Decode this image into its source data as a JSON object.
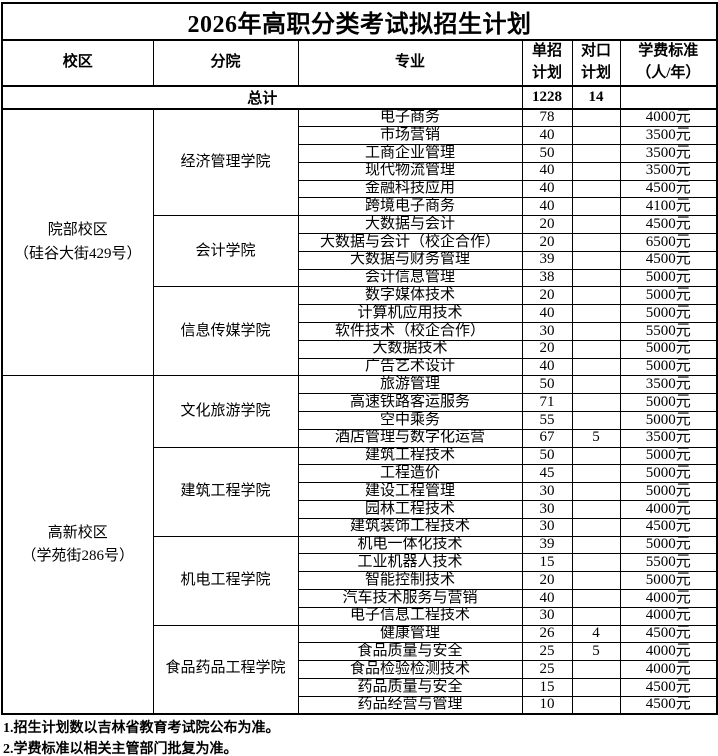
{
  "title": "2026年高职分类考试拟招生计划",
  "header": {
    "campus": "校区",
    "college": "分院",
    "major": "专业",
    "single_plan": "单招\n计划",
    "counterpart_plan": "对口\n计划",
    "tuition": "学费标准\n（人/年）"
  },
  "total": {
    "label": "总计",
    "single": "1228",
    "counterpart": "14",
    "tuition": ""
  },
  "campuses": [
    {
      "name": "院部校区\n（硅谷大街429号）",
      "colleges": [
        {
          "name": "经济管理学院",
          "majors": [
            {
              "major": "电子商务",
              "single": "78",
              "counterpart": "",
              "tuition": "4000元"
            },
            {
              "major": "市场营销",
              "single": "40",
              "counterpart": "",
              "tuition": "3500元"
            },
            {
              "major": "工商企业管理",
              "single": "50",
              "counterpart": "",
              "tuition": "3500元"
            },
            {
              "major": "现代物流管理",
              "single": "40",
              "counterpart": "",
              "tuition": "3500元"
            },
            {
              "major": "金融科技应用",
              "single": "40",
              "counterpart": "",
              "tuition": "4500元"
            },
            {
              "major": "跨境电子商务",
              "single": "40",
              "counterpart": "",
              "tuition": "4100元"
            }
          ]
        },
        {
          "name": "会计学院",
          "majors": [
            {
              "major": "大数据与会计",
              "single": "20",
              "counterpart": "",
              "tuition": "4500元"
            },
            {
              "major": "大数据与会计（校企合作）",
              "single": "20",
              "counterpart": "",
              "tuition": "6500元"
            },
            {
              "major": "大数据与财务管理",
              "single": "39",
              "counterpart": "",
              "tuition": "4500元"
            },
            {
              "major": "会计信息管理",
              "single": "38",
              "counterpart": "",
              "tuition": "5000元"
            }
          ]
        },
        {
          "name": "信息传媒学院",
          "majors": [
            {
              "major": "数字媒体技术",
              "single": "20",
              "counterpart": "",
              "tuition": "5000元"
            },
            {
              "major": "计算机应用技术",
              "single": "40",
              "counterpart": "",
              "tuition": "5000元"
            },
            {
              "major": "软件技术（校企合作）",
              "single": "30",
              "counterpart": "",
              "tuition": "5500元"
            },
            {
              "major": "大数据技术",
              "single": "20",
              "counterpart": "",
              "tuition": "5000元"
            },
            {
              "major": "广告艺术设计",
              "single": "40",
              "counterpart": "",
              "tuition": "5000元"
            }
          ]
        }
      ]
    },
    {
      "name": "高新校区\n（学苑街286号）",
      "colleges": [
        {
          "name": "文化旅游学院",
          "majors": [
            {
              "major": "旅游管理",
              "single": "50",
              "counterpart": "",
              "tuition": "3500元"
            },
            {
              "major": "高速铁路客运服务",
              "single": "71",
              "counterpart": "",
              "tuition": "5000元"
            },
            {
              "major": "空中乘务",
              "single": "55",
              "counterpart": "",
              "tuition": "5000元"
            },
            {
              "major": "酒店管理与数字化运营",
              "single": "67",
              "counterpart": "5",
              "tuition": "3500元"
            }
          ]
        },
        {
          "name": "建筑工程学院",
          "majors": [
            {
              "major": "建筑工程技术",
              "single": "50",
              "counterpart": "",
              "tuition": "5000元"
            },
            {
              "major": "工程造价",
              "single": "45",
              "counterpart": "",
              "tuition": "5000元"
            },
            {
              "major": "建设工程管理",
              "single": "30",
              "counterpart": "",
              "tuition": "5000元"
            },
            {
              "major": "园林工程技术",
              "single": "30",
              "counterpart": "",
              "tuition": "4000元"
            },
            {
              "major": "建筑装饰工程技术",
              "single": "30",
              "counterpart": "",
              "tuition": "4500元"
            }
          ]
        },
        {
          "name": "机电工程学院",
          "majors": [
            {
              "major": "机电一体化技术",
              "single": "39",
              "counterpart": "",
              "tuition": "5000元"
            },
            {
              "major": "工业机器人技术",
              "single": "15",
              "counterpart": "",
              "tuition": "5500元"
            },
            {
              "major": "智能控制技术",
              "single": "20",
              "counterpart": "",
              "tuition": "5000元"
            },
            {
              "major": "汽车技术服务与营销",
              "single": "40",
              "counterpart": "",
              "tuition": "4000元"
            },
            {
              "major": "电子信息工程技术",
              "single": "30",
              "counterpart": "",
              "tuition": "4000元"
            }
          ]
        },
        {
          "name": "食品药品工程学院",
          "majors": [
            {
              "major": "健康管理",
              "single": "26",
              "counterpart": "4",
              "tuition": "4500元"
            },
            {
              "major": "食品质量与安全",
              "single": "25",
              "counterpart": "5",
              "tuition": "4000元"
            },
            {
              "major": "食品检验检测技术",
              "single": "25",
              "counterpart": "",
              "tuition": "4000元"
            },
            {
              "major": "药品质量与安全",
              "single": "15",
              "counterpart": "",
              "tuition": "4500元"
            },
            {
              "major": "药品经营与管理",
              "single": "10",
              "counterpart": "",
              "tuition": "4500元"
            }
          ]
        }
      ]
    }
  ],
  "notes": [
    "1.招生计划数以吉林省教育考试院公布为准。",
    "2.学费标准以相关主管部门批复为准。"
  ]
}
